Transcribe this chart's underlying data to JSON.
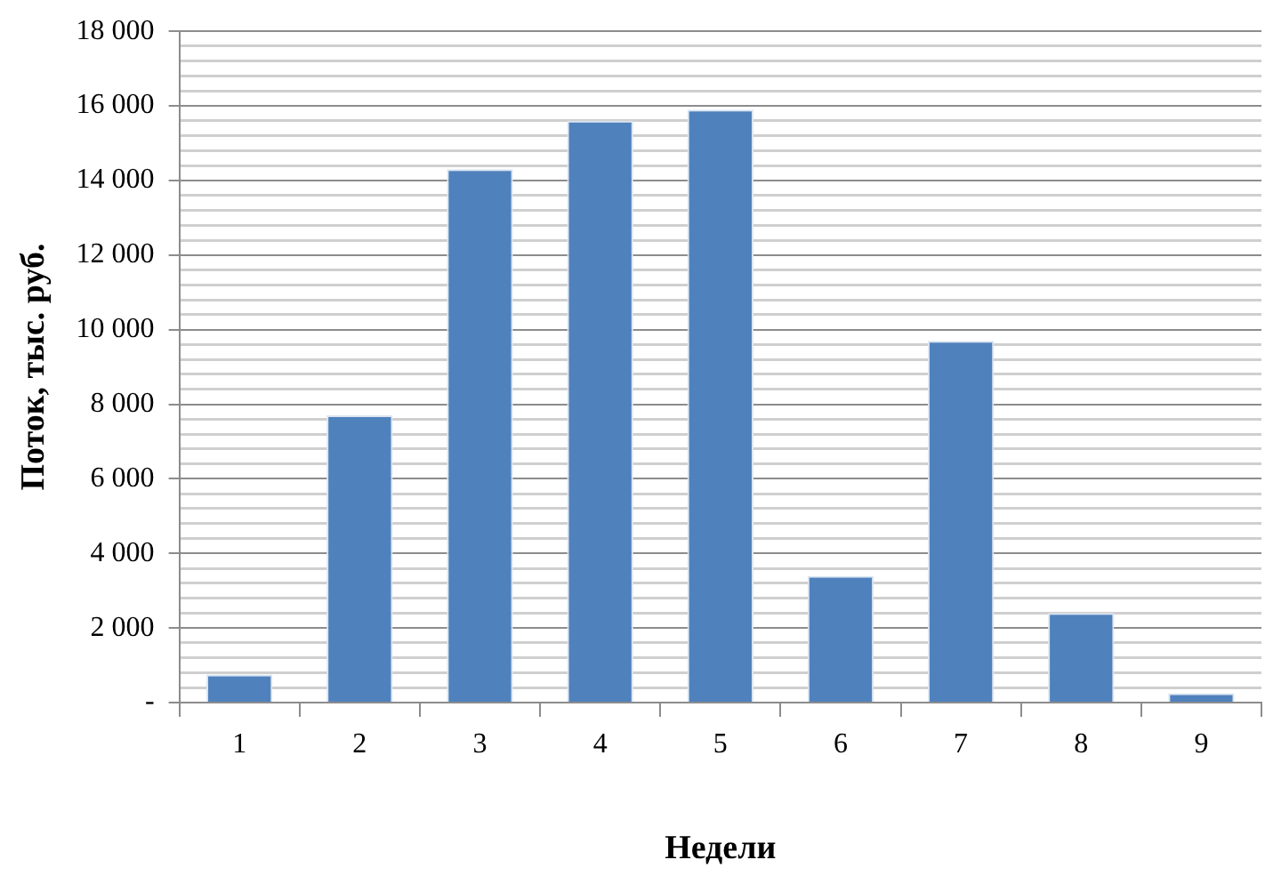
{
  "chart_data": {
    "type": "bar",
    "xlabel": "Недели",
    "ylabel": "Поток, тыс. руб.",
    "categories": [
      "1",
      "2",
      "3",
      "4",
      "5",
      "6",
      "7",
      "8",
      "9"
    ],
    "values": [
      750,
      7700,
      14300,
      15600,
      15900,
      3400,
      9700,
      2400,
      250
    ],
    "color": "#4f81bd",
    "ylim": [
      0,
      18000
    ],
    "yticks": [
      {
        "value": 0,
        "label": "-"
      },
      {
        "value": 400,
        "label": null
      },
      {
        "value": 800,
        "label": null
      },
      {
        "value": 1200,
        "label": null
      },
      {
        "value": 1600,
        "label": null
      },
      {
        "value": 2000,
        "label": "2 000"
      },
      {
        "value": 2400,
        "label": null
      },
      {
        "value": 2800,
        "label": null
      },
      {
        "value": 3200,
        "label": null
      },
      {
        "value": 3600,
        "label": null
      },
      {
        "value": 4000,
        "label": "4 000"
      },
      {
        "value": 4400,
        "label": null
      },
      {
        "value": 4800,
        "label": null
      },
      {
        "value": 5200,
        "label": null
      },
      {
        "value": 5600,
        "label": null
      },
      {
        "value": 6000,
        "label": "6 000"
      },
      {
        "value": 6400,
        "label": null
      },
      {
        "value": 6800,
        "label": null
      },
      {
        "value": 7200,
        "label": null
      },
      {
        "value": 7600,
        "label": null
      },
      {
        "value": 8000,
        "label": "8 000"
      },
      {
        "value": 8400,
        "label": null
      },
      {
        "value": 8800,
        "label": null
      },
      {
        "value": 9200,
        "label": null
      },
      {
        "value": 9600,
        "label": null
      },
      {
        "value": 10000,
        "label": "10 000"
      },
      {
        "value": 10400,
        "label": null
      },
      {
        "value": 10800,
        "label": null
      },
      {
        "value": 11200,
        "label": null
      },
      {
        "value": 11600,
        "label": null
      },
      {
        "value": 12000,
        "label": "12 000"
      },
      {
        "value": 12400,
        "label": null
      },
      {
        "value": 12800,
        "label": null
      },
      {
        "value": 13200,
        "label": null
      },
      {
        "value": 13600,
        "label": null
      },
      {
        "value": 14000,
        "label": "14 000"
      },
      {
        "value": 14400,
        "label": null
      },
      {
        "value": 14800,
        "label": null
      },
      {
        "value": 15200,
        "label": null
      },
      {
        "value": 15600,
        "label": null
      },
      {
        "value": 16000,
        "label": "16 000"
      },
      {
        "value": 16400,
        "label": null
      },
      {
        "value": 16800,
        "label": null
      },
      {
        "value": 17200,
        "label": null
      },
      {
        "value": 17600,
        "label": null
      },
      {
        "value": 18000,
        "label": "18 000"
      }
    ],
    "grid": "y",
    "legend": false
  }
}
